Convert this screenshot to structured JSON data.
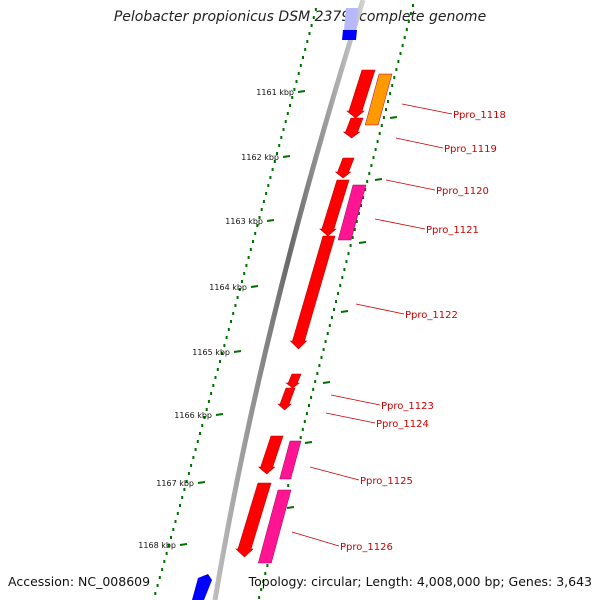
{
  "title": "Pelobacter propionicus DSM 2379, complete genome",
  "footer": {
    "accession": "Accession: NC_008609",
    "summary": "Topology: circular; Length: 4,008,000 bp; Genes: 3,643"
  },
  "colors": {
    "backbone": "#888888",
    "tick_dots": "#007000",
    "gene_red": "#ff0000",
    "gene_orange": "#ff9900",
    "gene_magenta": "#ff1493",
    "blue_feature": "#0000ff",
    "label_red": "#cc0000"
  },
  "ruler": [
    {
      "label": "1161 kbp"
    },
    {
      "label": "1162 kbp"
    },
    {
      "label": "1163 kbp"
    },
    {
      "label": "1164 kbp"
    },
    {
      "label": "1165 kbp"
    },
    {
      "label": "1166 kbp"
    },
    {
      "label": "1167 kbp"
    },
    {
      "label": "1168 kbp"
    }
  ],
  "genes": [
    {
      "label": "Ppro_1118",
      "color": "orange"
    },
    {
      "label": "Ppro_1119",
      "color": "red"
    },
    {
      "label": "Ppro_1120",
      "color": "red"
    },
    {
      "label": "Ppro_1121",
      "color": "magenta"
    },
    {
      "label": "Ppro_1122",
      "color": "red"
    },
    {
      "label": "Ppro_1123",
      "color": "red"
    },
    {
      "label": "Ppro_1124",
      "color": "red"
    },
    {
      "label": "Ppro_1125",
      "color": "magenta"
    },
    {
      "label": "Ppro_1126",
      "color": "magenta"
    }
  ]
}
